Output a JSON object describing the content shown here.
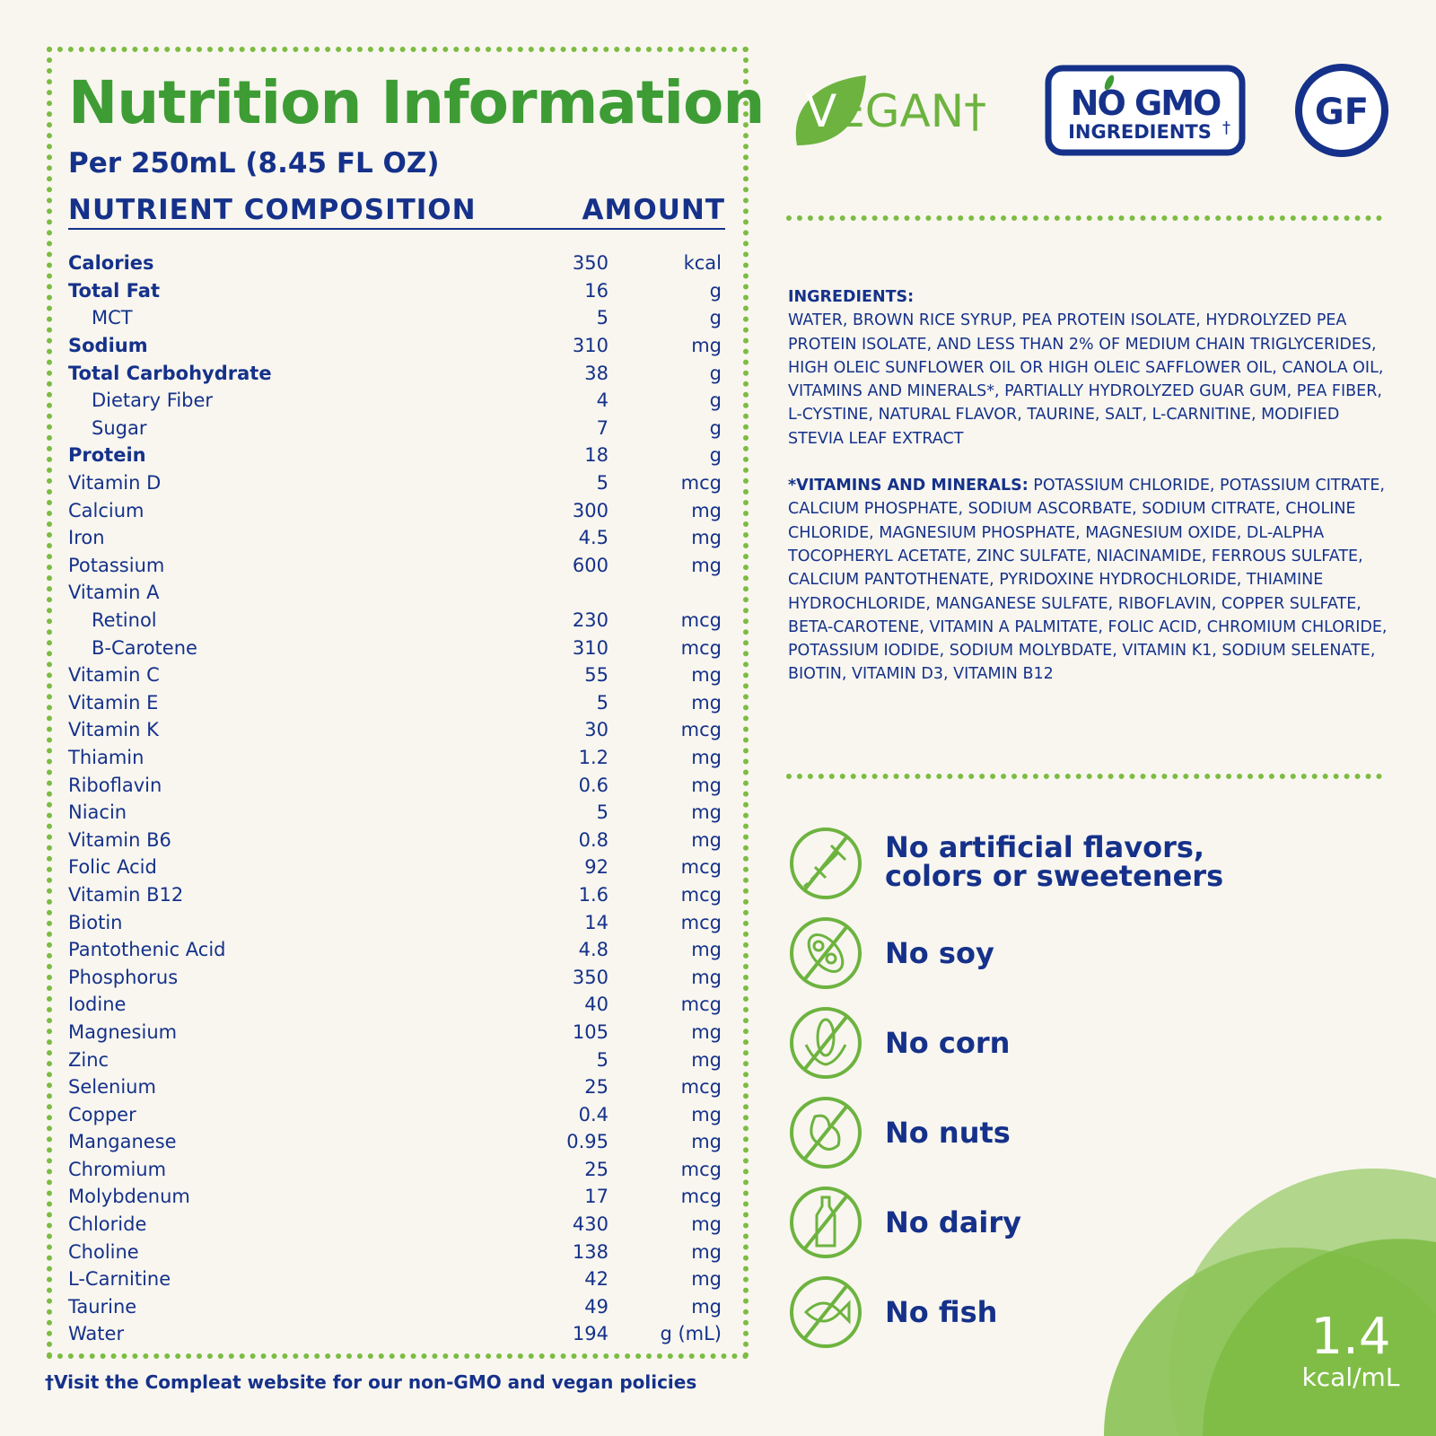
{
  "title": "Nutrition Information",
  "serving": "Per 250mL (8.45 FL OZ)",
  "header": {
    "nutrient": "NUTRIENT COMPOSITION",
    "amount": "AMOUNT"
  },
  "nutrients": [
    {
      "name": "Calories",
      "value": "350",
      "unit": "kcal",
      "style": "b"
    },
    {
      "name": "Total Fat",
      "value": "16",
      "unit": "g",
      "style": "b"
    },
    {
      "name": "MCT",
      "value": "5",
      "unit": "g",
      "style": "i"
    },
    {
      "name": "Sodium",
      "value": "310",
      "unit": "mg",
      "style": "b"
    },
    {
      "name": "Total Carbohydrate",
      "value": "38",
      "unit": "g",
      "style": "b"
    },
    {
      "name": "Dietary Fiber",
      "value": "4",
      "unit": "g",
      "style": "i"
    },
    {
      "name": "Sugar",
      "value": "7",
      "unit": "g",
      "style": "i"
    },
    {
      "name": "Protein",
      "value": "18",
      "unit": "g",
      "style": "b"
    },
    {
      "name": "Vitamin D",
      "value": "5",
      "unit": "mcg",
      "style": ""
    },
    {
      "name": "Calcium",
      "value": "300",
      "unit": "mg",
      "style": ""
    },
    {
      "name": "Iron",
      "value": "4.5",
      "unit": "mg",
      "style": ""
    },
    {
      "name": "Potassium",
      "value": "600",
      "unit": "mg",
      "style": ""
    },
    {
      "name": "Vitamin A",
      "value": "",
      "unit": "",
      "style": ""
    },
    {
      "name": "Retinol",
      "value": "230",
      "unit": "mcg",
      "style": "i"
    },
    {
      "name": "B-Carotene",
      "value": "310",
      "unit": "mcg",
      "style": "i"
    },
    {
      "name": "Vitamin C",
      "value": "55",
      "unit": "mg",
      "style": ""
    },
    {
      "name": "Vitamin E",
      "value": "5",
      "unit": "mg",
      "style": ""
    },
    {
      "name": "Vitamin K",
      "value": "30",
      "unit": "mcg",
      "style": ""
    },
    {
      "name": "Thiamin",
      "value": "1.2",
      "unit": "mg",
      "style": ""
    },
    {
      "name": "Riboflavin",
      "value": "0.6",
      "unit": "mg",
      "style": ""
    },
    {
      "name": "Niacin",
      "value": "5",
      "unit": "mg",
      "style": ""
    },
    {
      "name": "Vitamin B6",
      "value": "0.8",
      "unit": "mg",
      "style": ""
    },
    {
      "name": "Folic Acid",
      "value": "92",
      "unit": "mcg",
      "style": ""
    },
    {
      "name": "Vitamin B12",
      "value": "1.6",
      "unit": "mcg",
      "style": ""
    },
    {
      "name": "Biotin",
      "value": "14",
      "unit": "mcg",
      "style": ""
    },
    {
      "name": "Pantothenic Acid",
      "value": "4.8",
      "unit": "mg",
      "style": ""
    },
    {
      "name": "Phosphorus",
      "value": "350",
      "unit": "mg",
      "style": ""
    },
    {
      "name": "Iodine",
      "value": "40",
      "unit": "mcg",
      "style": ""
    },
    {
      "name": "Magnesium",
      "value": "105",
      "unit": "mg",
      "style": ""
    },
    {
      "name": "Zinc",
      "value": "5",
      "unit": "mg",
      "style": ""
    },
    {
      "name": "Selenium",
      "value": "25",
      "unit": "mcg",
      "style": ""
    },
    {
      "name": "Copper",
      "value": "0.4",
      "unit": "mg",
      "style": ""
    },
    {
      "name": "Manganese",
      "value": "0.95",
      "unit": "mg",
      "style": ""
    },
    {
      "name": "Chromium",
      "value": "25",
      "unit": "mcg",
      "style": ""
    },
    {
      "name": "Molybdenum",
      "value": "17",
      "unit": "mcg",
      "style": ""
    },
    {
      "name": "Chloride",
      "value": "430",
      "unit": "mg",
      "style": ""
    },
    {
      "name": "Choline",
      "value": "138",
      "unit": "mg",
      "style": ""
    },
    {
      "name": "L-Carnitine",
      "value": "42",
      "unit": "mg",
      "style": ""
    },
    {
      "name": "Taurine",
      "value": "49",
      "unit": "mg",
      "style": ""
    },
    {
      "name": "Water",
      "value": "194",
      "unit": "g (mL)",
      "style": ""
    }
  ],
  "logos": {
    "vegan": "VEGAN†",
    "nongmo_top": "NO GMO",
    "nongmo_bottom": "INGREDIENTS†",
    "gf": "GF"
  },
  "ingredients": {
    "label": "INGREDIENTS:",
    "text": "WATER, BROWN RICE SYRUP, PEA PROTEIN ISOLATE, HYDROLYZED PEA PROTEIN ISOLATE, AND LESS THAN 2% OF MEDIUM CHAIN TRIGLYCERIDES, HIGH OLEIC SUNFLOWER OIL OR HIGH OLEIC SAFFLOWER OIL, CANOLA OIL, VITAMINS AND MINERALS*, PARTIALLY HYDROLYZED GUAR GUM, PEA FIBER, L-CYSTINE, NATURAL FLAVOR, TAURINE, SALT, L-CARNITINE, MODIFIED STEVIA LEAF EXTRACT"
  },
  "vitamins": {
    "label": "*VITAMINS AND MINERALS:",
    "text": " POTASSIUM CHLORIDE, POTASSIUM CITRATE, CALCIUM PHOSPHATE, SODIUM ASCORBATE, SODIUM CITRATE, CHOLINE CHLORIDE, MAGNESIUM PHOSPHATE, MAGNESIUM OXIDE, DL-ALPHA TOCOPHERYL ACETATE, ZINC SULFATE, NIACINAMIDE, FERROUS SULFATE, CALCIUM PANTOTHENATE, PYRIDOXINE HYDROCHLORIDE, THIAMINE HYDROCHLORIDE, MANGANESE SULFATE, RIBOFLAVIN, COPPER SULFATE, BETA-CAROTENE, VITAMIN A PALMITATE, FOLIC ACID, CHROMIUM CHLORIDE, POTASSIUM IODIDE, SODIUM MOLYBDATE, VITAMIN K1, SODIUM SELENATE, BIOTIN, VITAMIN D3, VITAMIN B12"
  },
  "claims": [
    {
      "icon": "no-artificial-icon",
      "line1": "No artificial flavors,",
      "line2": "colors or sweeteners"
    },
    {
      "icon": "no-soy-icon",
      "line1": "No soy",
      "line2": ""
    },
    {
      "icon": "no-corn-icon",
      "line1": "No corn",
      "line2": ""
    },
    {
      "icon": "no-nuts-icon",
      "line1": "No nuts",
      "line2": ""
    },
    {
      "icon": "no-dairy-icon",
      "line1": "No dairy",
      "line2": ""
    },
    {
      "icon": "no-fish-icon",
      "line1": "No fish",
      "line2": ""
    }
  ],
  "density": {
    "value": "1.4",
    "unit": "kcal/mL"
  },
  "footnote": "†Visit the Compleat website for our non-GMO and vegan policies",
  "colors": {
    "green": "#3e9c35",
    "navy": "#15318a",
    "dots": "#7cbc42",
    "background": "#f8f6ef"
  }
}
